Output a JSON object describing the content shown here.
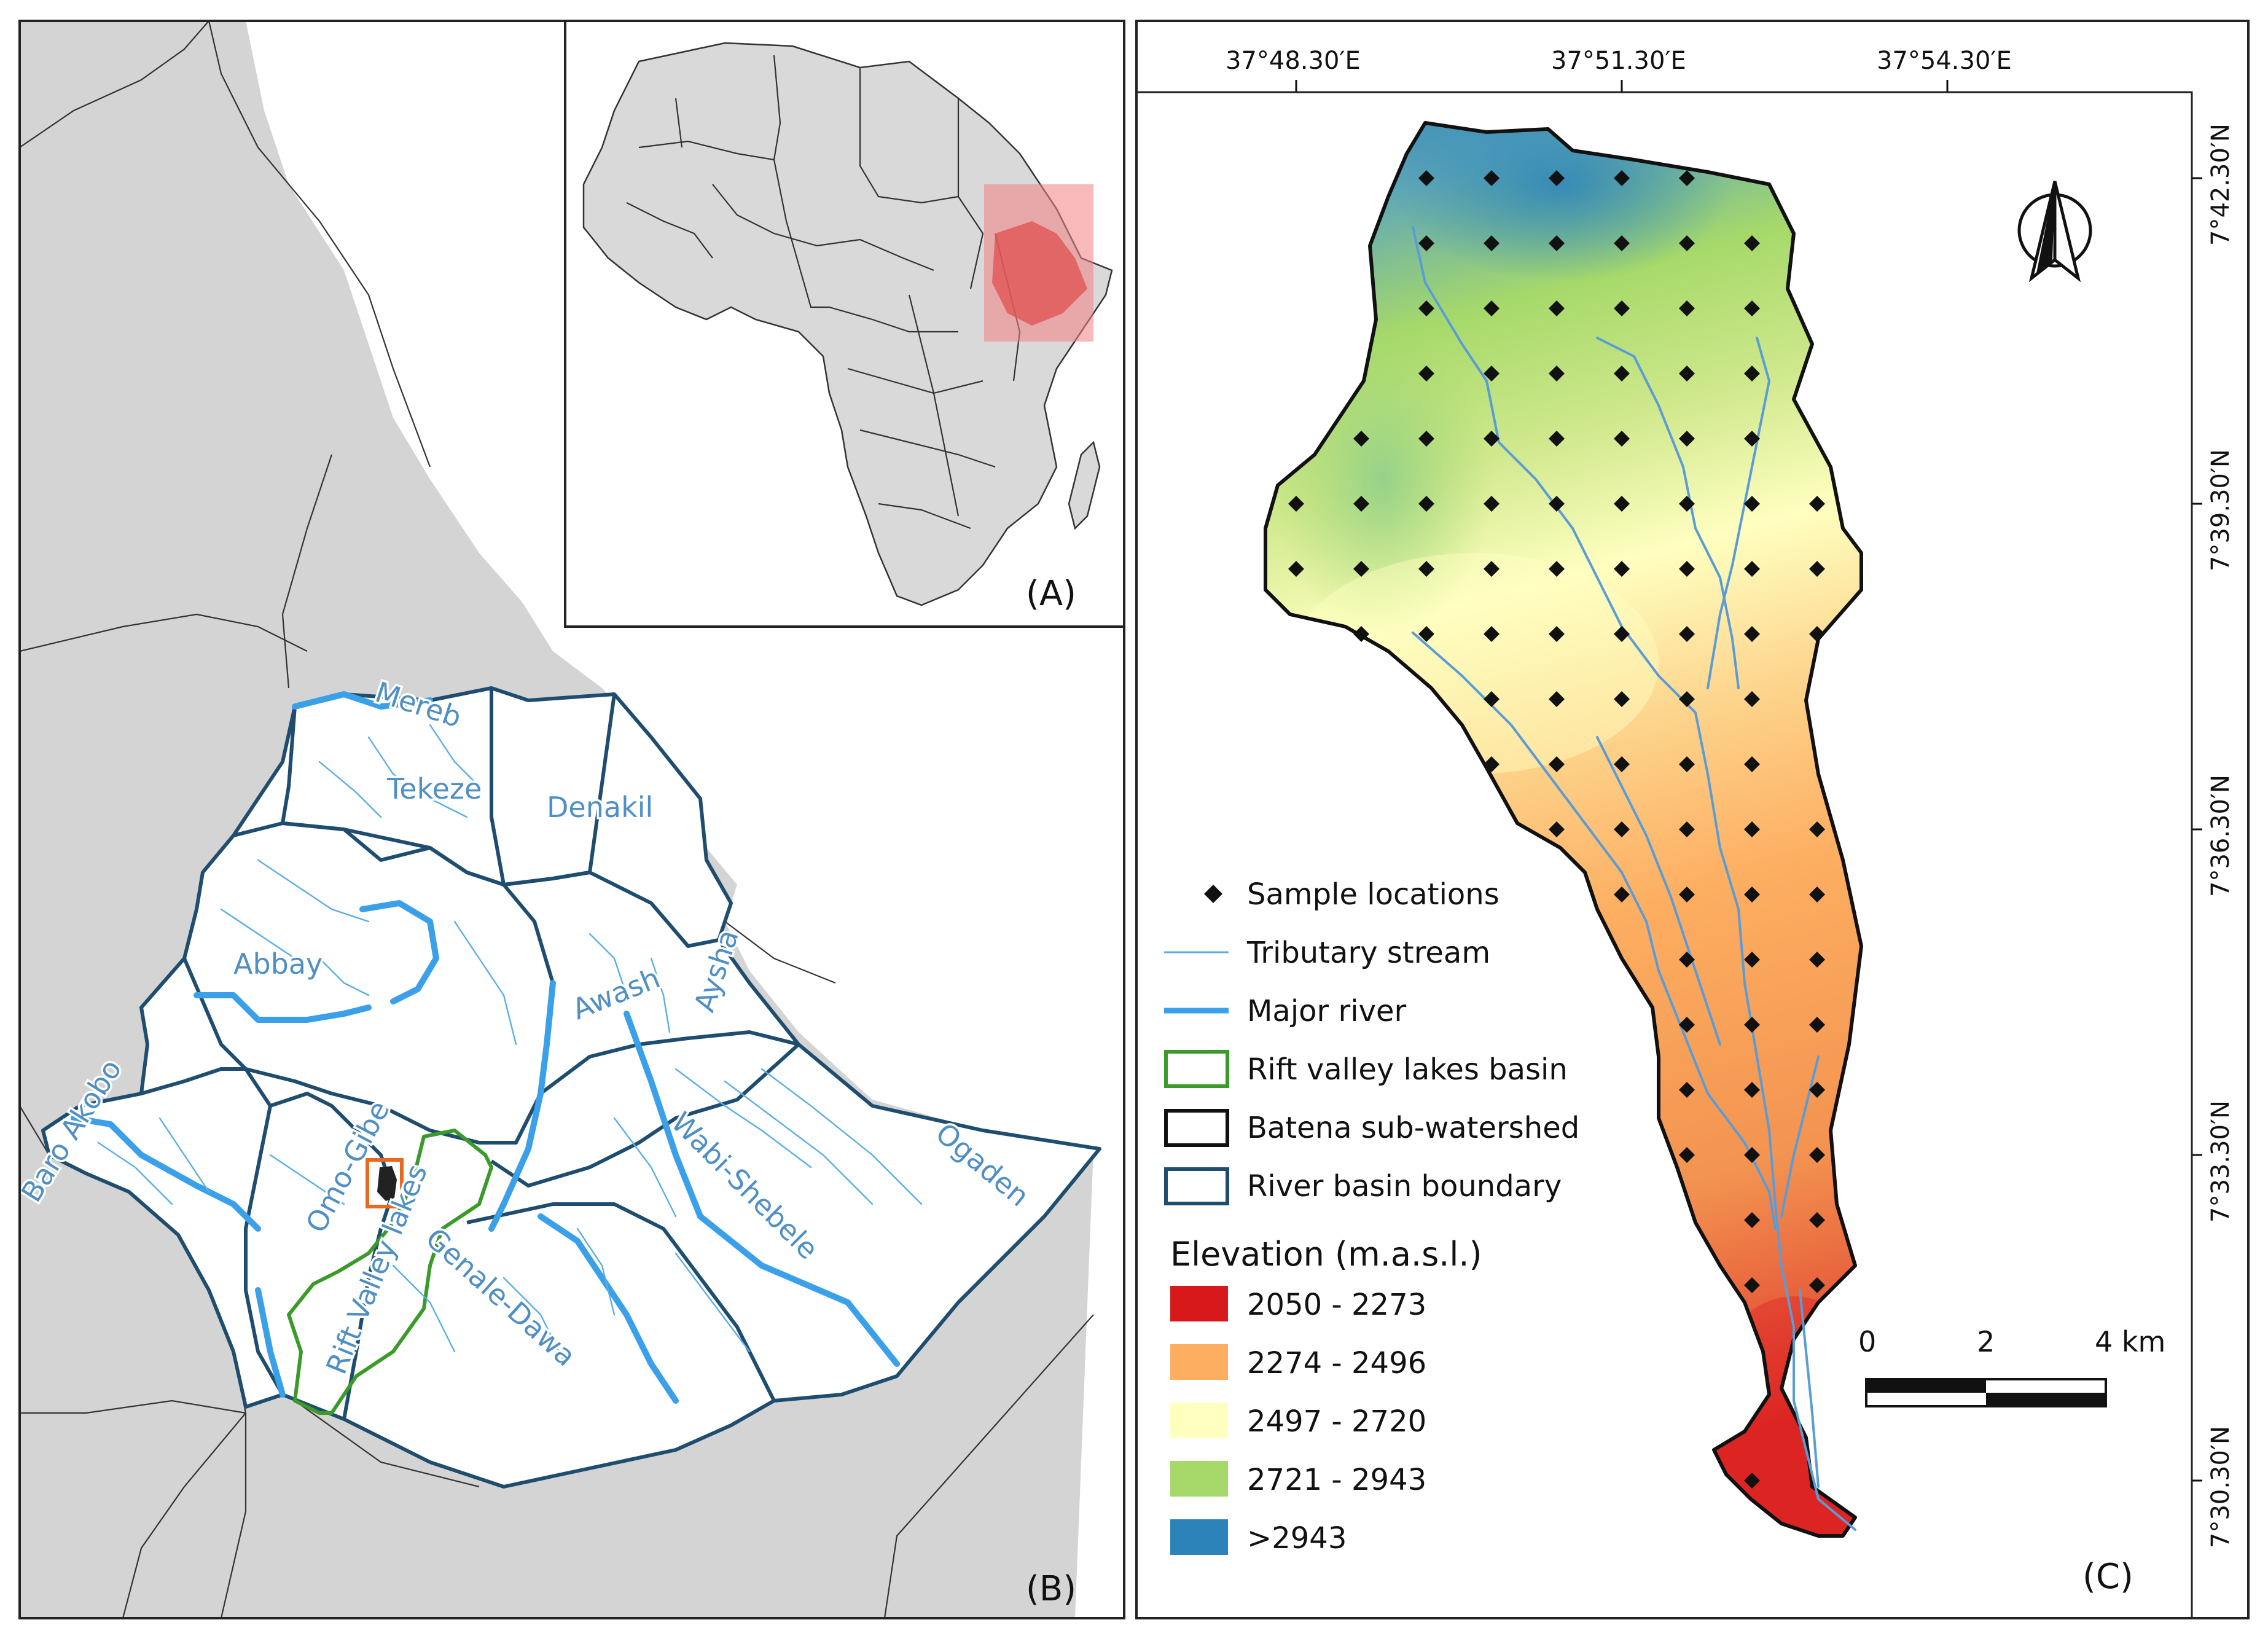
{
  "panels": {
    "a_label": "(A)",
    "b_label": "(B)",
    "c_label": "(C)"
  },
  "basins": [
    {
      "name": "Mereb"
    },
    {
      "name": "Tekeze"
    },
    {
      "name": "Denakil"
    },
    {
      "name": "Abbay"
    },
    {
      "name": "Awash"
    },
    {
      "name": "Aysha"
    },
    {
      "name": "Baro Akobo"
    },
    {
      "name": "Omo-Gibe"
    },
    {
      "name": "Rift Valley lakes"
    },
    {
      "name": "Wabi-Shebele"
    },
    {
      "name": "Ogaden"
    },
    {
      "name": "Genale-Dawa"
    }
  ],
  "coordinates": {
    "longitude": [
      "37°48.30′E",
      "37°51.30′E",
      "37°54.30′E"
    ],
    "latitude": [
      "7°42.30′N",
      "7°39.30′N",
      "7°36.30′N",
      "7°33.30′N",
      "7°30.30′N"
    ]
  },
  "legend": {
    "items": [
      {
        "label": "Sample locations",
        "symbol": "diamond-icon"
      },
      {
        "label": "Tributary stream",
        "symbol": "thin-line",
        "color": "#5aaee6"
      },
      {
        "label": "Major river",
        "symbol": "thick-line",
        "color": "#3aa0ea"
      },
      {
        "label": "Rift valley lakes basin",
        "symbol": "box",
        "color": "#3a9a2a"
      },
      {
        "label": "Batena sub-watershed",
        "symbol": "box",
        "color": "#111111"
      },
      {
        "label": "River basin boundary",
        "symbol": "box",
        "color": "#1e4d6f"
      }
    ],
    "elevation_title": "Elevation (m.a.s.l.)",
    "elevation_classes": [
      {
        "label": "2050 - 2273",
        "color": "#d7191c"
      },
      {
        "label": "2274 - 2496",
        "color": "#fdae61"
      },
      {
        "label": "2497 - 2720",
        "color": "#ffffc0"
      },
      {
        "label": "2721 - 2943",
        "color": "#a6d96a"
      },
      {
        "label": ">2943",
        "color": "#2b83ba"
      }
    ]
  },
  "scale_bar": {
    "labels": [
      "0",
      "2",
      "4 km"
    ]
  },
  "north_arrow": {
    "icon": "north-arrow-icon"
  },
  "inset_highlight_color": "#f08080"
}
